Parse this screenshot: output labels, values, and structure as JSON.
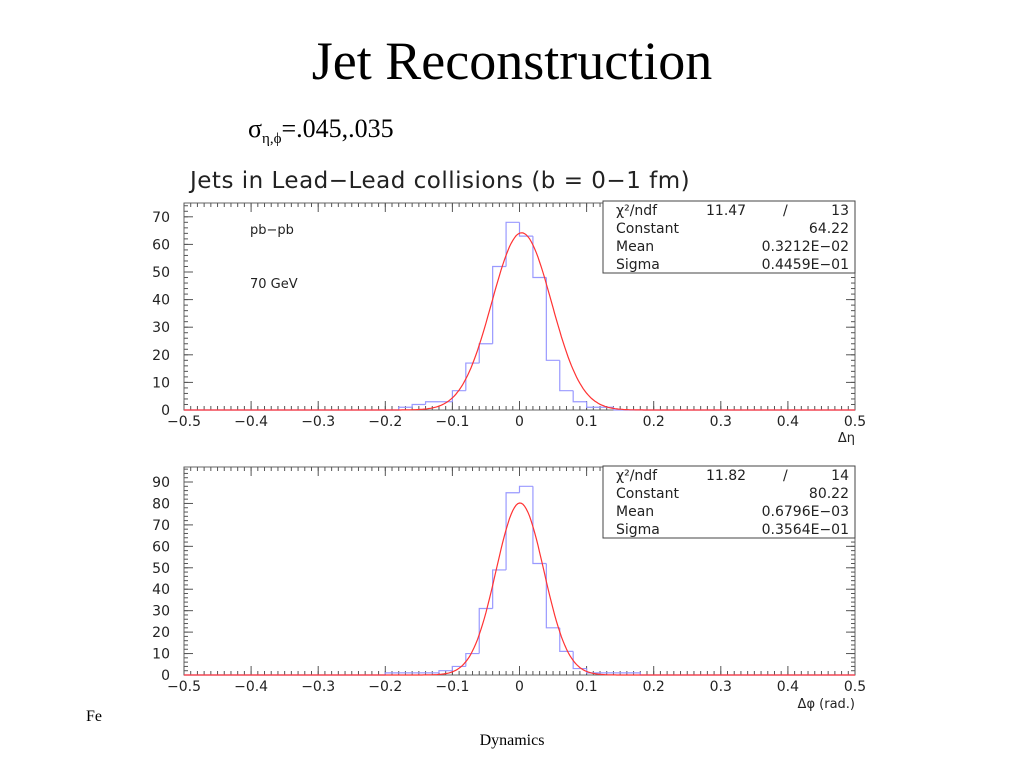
{
  "slide": {
    "title": "Jet Reconstruction",
    "sigma_symbol": "σ",
    "sigma_subscript": "η,ϕ",
    "sigma_values": "=.045,.035",
    "footer_left": "Fe",
    "footer_center": "Dynamics"
  },
  "chart_data": [
    {
      "type": "bar",
      "title": "Jets in Lead−Lead collisions (b = 0−1 fm)",
      "xlabel": "Δη",
      "ylabel": "",
      "xlim": [
        -0.5,
        0.5
      ],
      "ylim": [
        0,
        75
      ],
      "x_ticks": [
        "−0.5",
        "−0.4",
        "−0.3",
        "−0.2",
        "−0.1",
        "0",
        "0.1",
        "0.2",
        "0.3",
        "0.4",
        "0.5"
      ],
      "y_ticks": [
        "0",
        "10",
        "20",
        "30",
        "40",
        "50",
        "60",
        "70"
      ],
      "annotations": [
        "pb−pb",
        "70 GeV"
      ],
      "bin_width": 0.02,
      "bin_centers": [
        -0.17,
        -0.15,
        -0.13,
        -0.11,
        -0.09,
        -0.07,
        -0.05,
        -0.03,
        -0.01,
        0.01,
        0.03,
        0.05,
        0.07,
        0.09,
        0.11,
        0.13
      ],
      "values": [
        1,
        2,
        3,
        3,
        7,
        17,
        24,
        52,
        68,
        63,
        48,
        18,
        7,
        3,
        1,
        1
      ],
      "fit": {
        "function": "gaussian",
        "constant": 64.22,
        "mean": 0.003212,
        "sigma": 0.04459
      },
      "stats": {
        "chi2_label": "χ²/ndf",
        "chi2_value": "11.47",
        "slash": "/",
        "ndf_value": "13",
        "constant_label": "Constant",
        "constant_value": "64.22",
        "mean_label": "Mean",
        "mean_value": "0.3212E−02",
        "sigma_label": "Sigma",
        "sigma_value": "0.4459E−01"
      }
    },
    {
      "type": "bar",
      "title": "",
      "xlabel": "Δφ (rad.)",
      "ylabel": "",
      "xlim": [
        -0.5,
        0.5
      ],
      "ylim": [
        0,
        97
      ],
      "x_ticks": [
        "−0.5",
        "−0.4",
        "−0.3",
        "−0.2",
        "−0.1",
        "0",
        "0.1",
        "0.2",
        "0.3",
        "0.4",
        "0.5"
      ],
      "y_ticks": [
        "0",
        "10",
        "20",
        "30",
        "40",
        "50",
        "60",
        "70",
        "80",
        "90"
      ],
      "annotations": [],
      "bin_width": 0.02,
      "bin_centers": [
        -0.19,
        -0.17,
        -0.15,
        -0.13,
        -0.11,
        -0.09,
        -0.07,
        -0.05,
        -0.03,
        -0.01,
        0.01,
        0.03,
        0.05,
        0.07,
        0.09,
        0.11,
        0.13,
        0.15,
        0.17
      ],
      "values": [
        1,
        1,
        1,
        1,
        2,
        4,
        10,
        31,
        49,
        85,
        88,
        52,
        22,
        11,
        3,
        1,
        1,
        1,
        1
      ],
      "fit": {
        "function": "gaussian",
        "constant": 80.22,
        "mean": 0.0006796,
        "sigma": 0.03564
      },
      "stats": {
        "chi2_label": "χ²/ndf",
        "chi2_value": "11.82",
        "slash": "/",
        "ndf_value": "14",
        "constant_label": "Constant",
        "constant_value": "80.22",
        "mean_label": "Mean",
        "mean_value": "0.6796E−03",
        "sigma_label": "Sigma",
        "sigma_value": "0.3564E−01"
      }
    }
  ],
  "colors": {
    "histogram": "#9999ff",
    "fit_curve": "#ff3333",
    "axis": "#555555",
    "text": "#222222"
  }
}
